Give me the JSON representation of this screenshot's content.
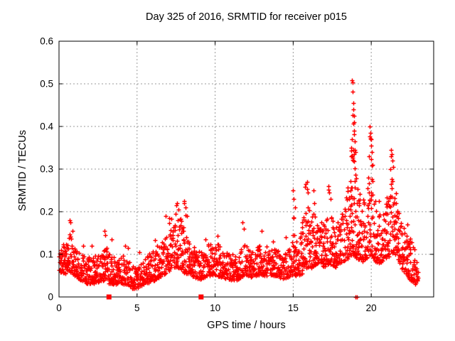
{
  "page": {
    "background": "#ffffff"
  },
  "chart_data": {
    "type": "scatter",
    "title": "Day 325 of 2016, SRMTID for receiver p015",
    "xlabel": "GPS time / hours",
    "ylabel": "SRMTID / TECUs",
    "xlim": [
      0,
      24
    ],
    "ylim": [
      0,
      0.6
    ],
    "xticks": {
      "values": [
        0,
        5,
        10,
        15,
        20
      ],
      "labels": [
        "0",
        "5",
        "10",
        "15",
        "20"
      ]
    },
    "yticks": {
      "values": [
        0,
        0.1,
        0.2,
        0.3,
        0.4,
        0.5,
        0.6
      ],
      "labels": [
        "0",
        "0.1",
        "0.2",
        "0.3",
        "0.4",
        "0.5",
        "0.6"
      ]
    },
    "grid": {
      "show": true,
      "color": "#9a9a9a",
      "dash": "2,3"
    },
    "frame_color": "#000000",
    "background": "#ffffff",
    "series": [
      {
        "name": "srmtid",
        "marker": "plus",
        "color": "#ff0000",
        "seed": 1325,
        "samples_per_hour": 62,
        "t_start": 0.0,
        "t_end": 23.0,
        "band_keyframes": [
          [
            0.0,
            0.06,
            0.13
          ],
          [
            0.4,
            0.055,
            0.125
          ],
          [
            0.7,
            0.06,
            0.155
          ],
          [
            1.0,
            0.05,
            0.115
          ],
          [
            1.5,
            0.035,
            0.1
          ],
          [
            2.0,
            0.03,
            0.095
          ],
          [
            2.5,
            0.035,
            0.1
          ],
          [
            2.9,
            0.035,
            0.125
          ],
          [
            3.3,
            0.03,
            0.105
          ],
          [
            3.7,
            0.03,
            0.085
          ],
          [
            4.2,
            0.03,
            0.1
          ],
          [
            4.7,
            0.02,
            0.08
          ],
          [
            5.0,
            0.02,
            0.075
          ],
          [
            5.4,
            0.03,
            0.095
          ],
          [
            5.8,
            0.035,
            0.105
          ],
          [
            6.2,
            0.04,
            0.11
          ],
          [
            6.6,
            0.05,
            0.13
          ],
          [
            7.0,
            0.06,
            0.17
          ],
          [
            7.4,
            0.07,
            0.2
          ],
          [
            7.8,
            0.065,
            0.185
          ],
          [
            8.1,
            0.055,
            0.155
          ],
          [
            8.5,
            0.05,
            0.12
          ],
          [
            9.0,
            0.04,
            0.11
          ],
          [
            9.5,
            0.05,
            0.125
          ],
          [
            10.1,
            0.05,
            0.13
          ],
          [
            10.5,
            0.045,
            0.11
          ],
          [
            11.0,
            0.04,
            0.1
          ],
          [
            11.5,
            0.04,
            0.105
          ],
          [
            11.8,
            0.05,
            0.13
          ],
          [
            12.2,
            0.045,
            0.11
          ],
          [
            12.6,
            0.05,
            0.115
          ],
          [
            13.0,
            0.05,
            0.125
          ],
          [
            13.5,
            0.05,
            0.115
          ],
          [
            14.0,
            0.05,
            0.115
          ],
          [
            14.3,
            0.04,
            0.1
          ],
          [
            14.6,
            0.045,
            0.115
          ],
          [
            15.0,
            0.05,
            0.17
          ],
          [
            15.3,
            0.05,
            0.14
          ],
          [
            15.8,
            0.06,
            0.215
          ],
          [
            16.2,
            0.07,
            0.205
          ],
          [
            16.6,
            0.08,
            0.19
          ],
          [
            17.0,
            0.07,
            0.175
          ],
          [
            17.3,
            0.08,
            0.21
          ],
          [
            17.7,
            0.07,
            0.17
          ],
          [
            18.1,
            0.08,
            0.19
          ],
          [
            18.5,
            0.09,
            0.27
          ],
          [
            18.8,
            0.1,
            0.32
          ],
          [
            19.1,
            0.09,
            0.27
          ],
          [
            19.4,
            0.08,
            0.22
          ],
          [
            19.7,
            0.09,
            0.25
          ],
          [
            20.0,
            0.1,
            0.3
          ],
          [
            20.3,
            0.08,
            0.22
          ],
          [
            20.6,
            0.08,
            0.2
          ],
          [
            20.9,
            0.09,
            0.22
          ],
          [
            21.3,
            0.1,
            0.3
          ],
          [
            21.6,
            0.09,
            0.24
          ],
          [
            21.9,
            0.07,
            0.18
          ],
          [
            22.2,
            0.05,
            0.155
          ],
          [
            22.5,
            0.04,
            0.14
          ],
          [
            22.8,
            0.03,
            0.11
          ],
          [
            23.0,
            0.04,
            0.09
          ]
        ],
        "spike_points": [
          [
            0.68,
            0.18
          ],
          [
            0.74,
            0.175
          ],
          [
            0.85,
            0.155
          ],
          [
            1.55,
            0.12
          ],
          [
            2.1,
            0.12
          ],
          [
            2.9,
            0.155
          ],
          [
            2.97,
            0.145
          ],
          [
            3.35,
            0.135
          ],
          [
            4.25,
            0.12
          ],
          [
            4.4,
            0.115
          ],
          [
            5.15,
            0.105
          ],
          [
            6.15,
            0.133
          ],
          [
            6.3,
            0.12
          ],
          [
            6.85,
            0.19
          ],
          [
            7.05,
            0.185
          ],
          [
            7.5,
            0.215
          ],
          [
            7.57,
            0.22
          ],
          [
            7.63,
            0.205
          ],
          [
            8.0,
            0.225
          ],
          [
            8.12,
            0.21
          ],
          [
            8.2,
            0.19
          ],
          [
            9.4,
            0.135
          ],
          [
            10.15,
            0.143
          ],
          [
            11.75,
            0.175
          ],
          [
            11.82,
            0.16
          ],
          [
            13.0,
            0.155
          ],
          [
            13.7,
            0.13
          ],
          [
            14.55,
            0.14
          ],
          [
            15.0,
            0.25
          ],
          [
            15.05,
            0.23
          ],
          [
            15.1,
            0.21
          ],
          [
            15.8,
            0.265
          ],
          [
            15.88,
            0.27
          ],
          [
            15.95,
            0.245
          ],
          [
            16.3,
            0.25
          ],
          [
            16.36,
            0.22
          ],
          [
            17.25,
            0.26
          ],
          [
            17.32,
            0.245
          ],
          [
            17.4,
            0.23
          ],
          [
            18.72,
            0.33
          ],
          [
            18.74,
            0.35
          ],
          [
            18.76,
            0.37
          ],
          [
            18.78,
            0.508
          ],
          [
            18.8,
            0.503
          ],
          [
            18.82,
            0.482
          ],
          [
            18.84,
            0.455
          ],
          [
            18.86,
            0.44
          ],
          [
            18.88,
            0.425
          ],
          [
            18.9,
            0.41
          ],
          [
            18.92,
            0.39
          ],
          [
            18.94,
            0.365
          ],
          [
            18.96,
            0.345
          ],
          [
            19.85,
            0.33
          ],
          [
            19.9,
            0.4
          ],
          [
            19.93,
            0.385
          ],
          [
            19.97,
            0.37
          ],
          [
            20.0,
            0.355
          ],
          [
            20.03,
            0.34
          ],
          [
            20.07,
            0.31
          ],
          [
            20.5,
            0.225
          ],
          [
            21.2,
            0.3
          ],
          [
            21.25,
            0.345
          ],
          [
            21.3,
            0.335
          ],
          [
            21.35,
            0.32
          ],
          [
            21.42,
            0.305
          ],
          [
            22.3,
            0.17
          ]
        ],
        "near_zero_points": [
          [
            19.0,
            0.0
          ],
          [
            19.07,
            0.0
          ]
        ]
      },
      {
        "name": "axis-flag-squares",
        "marker": "filled-square",
        "color": "#ff0000",
        "points": [
          [
            3.2,
            0.0
          ],
          [
            9.1,
            0.0
          ]
        ]
      }
    ]
  }
}
